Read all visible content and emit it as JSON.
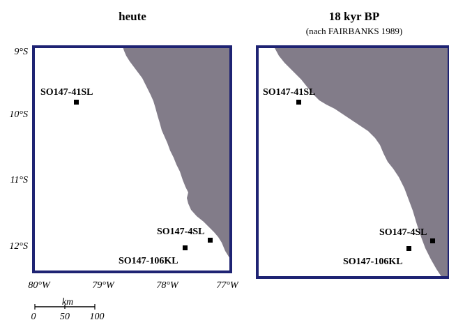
{
  "colors": {
    "land": "#827c89",
    "frame": "#1e2373",
    "water": "#ffffff"
  },
  "panels": [
    {
      "title": "heute",
      "subtitle": "",
      "sites": [
        {
          "name": "SO147-41SL"
        },
        {
          "name": "SO147-4SL"
        },
        {
          "name": "SO147-106KL"
        }
      ]
    },
    {
      "title": "18 kyr BP",
      "subtitle": "(nach FAIRBANKS 1989)",
      "sites": [
        {
          "name": "SO147-41SL"
        },
        {
          "name": "SO147-4SL"
        },
        {
          "name": "SO147-106KL"
        }
      ]
    }
  ],
  "lat_labels": [
    "9°S",
    "10°S",
    "11°S",
    "12°S"
  ],
  "lon_labels": [
    "80°W",
    "79°W",
    "78°W",
    "77°W"
  ],
  "scale": {
    "unit": "km",
    "ticks": [
      "0",
      "50",
      "100"
    ]
  }
}
